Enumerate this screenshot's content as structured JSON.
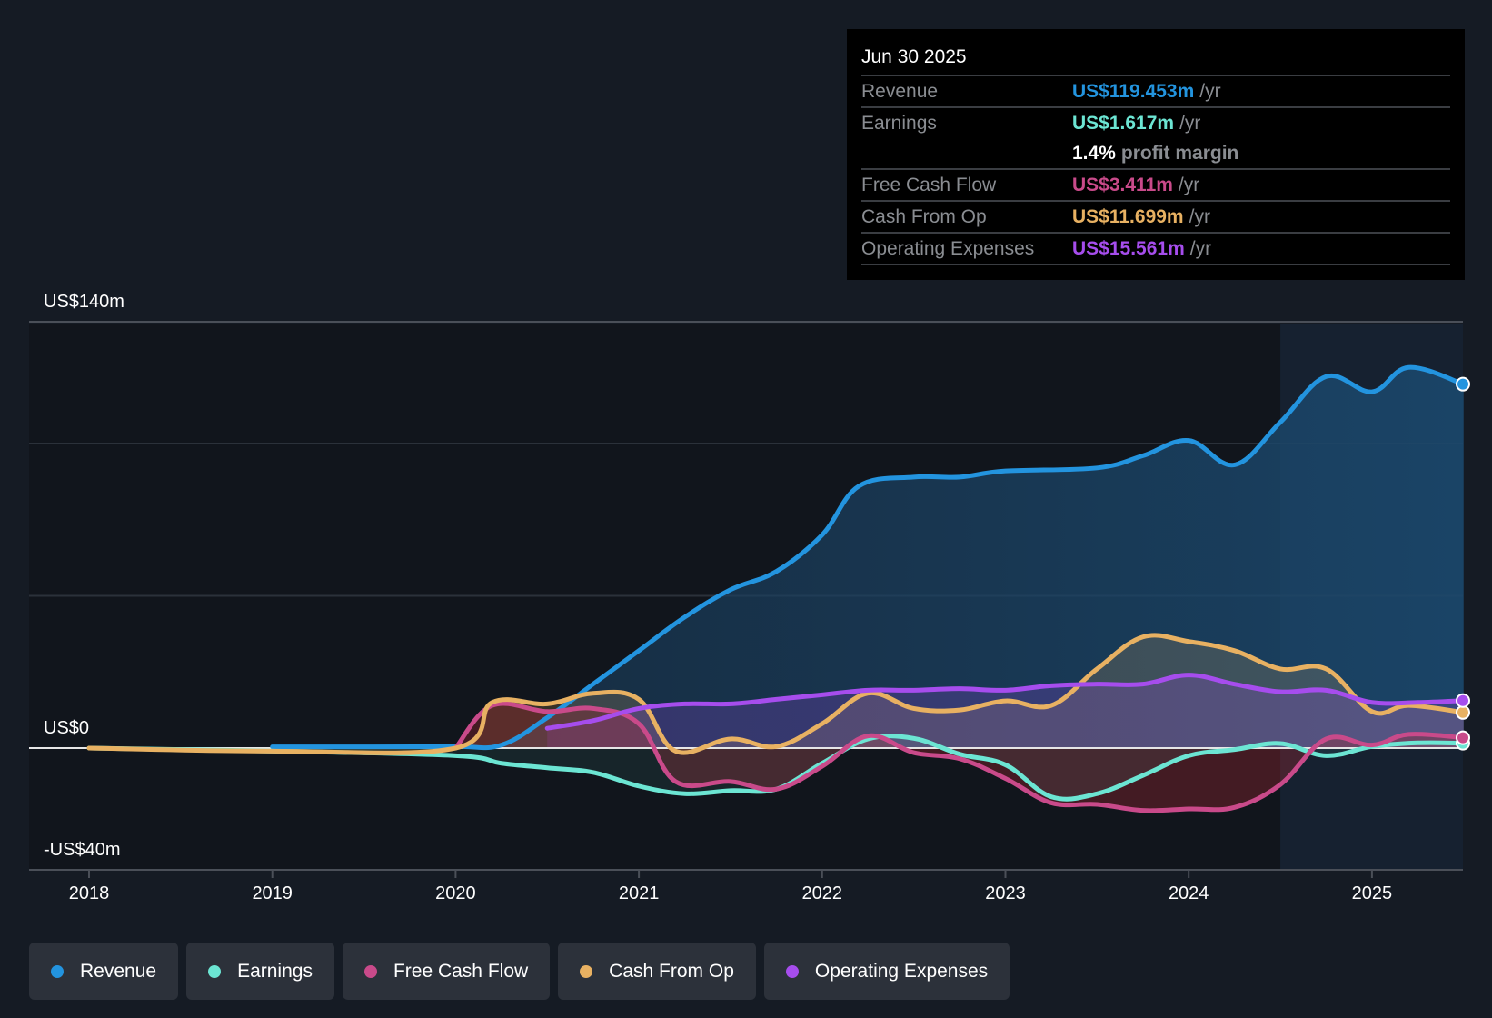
{
  "tooltip": {
    "date": "Jun 30 2025",
    "rows": [
      {
        "label": "Revenue",
        "value": "US$119.453m",
        "unit": "/yr",
        "color": "#2394df"
      },
      {
        "label": "Earnings",
        "value": "US$1.617m",
        "unit": "/yr",
        "color": "#6ce5d3"
      },
      {
        "label": "",
        "margin_value": "1.4%",
        "margin_text": "profit margin"
      },
      {
        "label": "Free Cash Flow",
        "value": "US$3.411m",
        "unit": "/yr",
        "color": "#c94a8a"
      },
      {
        "label": "Cash From Op",
        "value": "US$11.699m",
        "unit": "/yr",
        "color": "#e8b162"
      },
      {
        "label": "Operating Expenses",
        "value": "US$15.561m",
        "unit": "/yr",
        "color": "#a64ded"
      }
    ]
  },
  "legend": [
    {
      "label": "Revenue",
      "color": "#2394df"
    },
    {
      "label": "Earnings",
      "color": "#6ce5d3"
    },
    {
      "label": "Free Cash Flow",
      "color": "#c94a8a"
    },
    {
      "label": "Cash From Op",
      "color": "#e8b162"
    },
    {
      "label": "Operating Expenses",
      "color": "#a64ded"
    }
  ],
  "chart_data": {
    "type": "area",
    "title": "",
    "xlabel": "",
    "ylabel": "",
    "xlim": [
      2017.7,
      2025.5
    ],
    "ylim": [
      -40,
      140
    ],
    "y_tick_labels": [
      {
        "value": 140,
        "label": "US$140m"
      },
      {
        "value": 0,
        "label": "US$0"
      },
      {
        "value": -40,
        "label": "-US$40m"
      }
    ],
    "gridlines": [
      140,
      100,
      50,
      0
    ],
    "x_ticks": [
      2018,
      2019,
      2020,
      2021,
      2022,
      2023,
      2024,
      2025
    ],
    "x_tick_labels": [
      "2018",
      "2019",
      "2020",
      "2021",
      "2022",
      "2023",
      "2024",
      "2025"
    ],
    "highlight_start": 2024.5,
    "legend_position": "bottom-left",
    "series": [
      {
        "name": "Revenue",
        "color": "#2394df",
        "x": [
          2019.0,
          2019.5,
          2020.0,
          2020.25,
          2020.5,
          2020.75,
          2021.0,
          2021.25,
          2021.5,
          2021.75,
          2022.0,
          2022.2,
          2022.5,
          2022.75,
          2023.0,
          2023.5,
          2023.75,
          2024.0,
          2024.25,
          2024.5,
          2024.75,
          2025.0,
          2025.2,
          2025.5
        ],
        "values": [
          0.4,
          0.4,
          0.5,
          1,
          10,
          21,
          32,
          43,
          52,
          58,
          70,
          86,
          89,
          89,
          91,
          92,
          96,
          101,
          93,
          107,
          122,
          117,
          125,
          119.5
        ]
      },
      {
        "name": "Earnings",
        "color": "#6ce5d3",
        "x": [
          2018.0,
          2019.0,
          2020.0,
          2020.25,
          2020.5,
          2020.75,
          2021.0,
          2021.25,
          2021.5,
          2021.75,
          2022.0,
          2022.25,
          2022.5,
          2022.75,
          2023.0,
          2023.25,
          2023.5,
          2023.75,
          2024.0,
          2024.25,
          2024.5,
          2024.75,
          2025.0,
          2025.25,
          2025.5
        ],
        "values": [
          0,
          -1,
          -2.5,
          -5,
          -6.5,
          -8,
          -12.5,
          -15,
          -14,
          -13.5,
          -5,
          3,
          3.2,
          -2,
          -5.5,
          -16,
          -15,
          -9,
          -2.5,
          -0.5,
          1.5,
          -2.5,
          0.5,
          1.7,
          1.6
        ]
      },
      {
        "name": "Free Cash Flow",
        "color": "#c94a8a",
        "x": [
          2020.0,
          2020.2,
          2020.5,
          2020.75,
          2021.0,
          2021.2,
          2021.5,
          2021.75,
          2022.0,
          2022.25,
          2022.5,
          2022.75,
          2023.0,
          2023.25,
          2023.5,
          2023.75,
          2024.0,
          2024.25,
          2024.5,
          2024.75,
          2025.0,
          2025.2,
          2025.5
        ],
        "values": [
          0,
          14,
          12,
          13,
          8,
          -11,
          -11,
          -13.5,
          -6,
          4,
          -1.5,
          -3.5,
          -10,
          -18,
          -18.5,
          -20.5,
          -20,
          -19.5,
          -12,
          3,
          1,
          4.5,
          3.4
        ]
      },
      {
        "name": "Cash From Op",
        "color": "#e8b162",
        "x": [
          2018.0,
          2019.0,
          2020.0,
          2020.2,
          2020.5,
          2020.75,
          2021.0,
          2021.2,
          2021.5,
          2021.75,
          2022.0,
          2022.25,
          2022.5,
          2022.75,
          2023.0,
          2023.25,
          2023.5,
          2023.75,
          2024.0,
          2024.25,
          2024.5,
          2024.75,
          2025.0,
          2025.2,
          2025.5
        ],
        "values": [
          0,
          -1,
          0,
          15,
          14.5,
          18,
          16,
          -1,
          3,
          0.5,
          8,
          18,
          13,
          12.5,
          15.5,
          14,
          26,
          36.5,
          35,
          32,
          26,
          26,
          12,
          14,
          11.7
        ]
      },
      {
        "name": "Operating Expenses",
        "color": "#a64ded",
        "x": [
          2020.5,
          2020.75,
          2021.0,
          2021.25,
          2021.5,
          2021.75,
          2022.0,
          2022.25,
          2022.5,
          2022.75,
          2023.0,
          2023.25,
          2023.5,
          2023.75,
          2024.0,
          2024.25,
          2024.5,
          2024.75,
          2025.0,
          2025.25,
          2025.5
        ],
        "values": [
          6.5,
          9,
          13,
          14.5,
          14.5,
          16,
          17.5,
          19,
          19,
          19.5,
          19,
          20.5,
          21,
          21,
          24,
          21,
          18.5,
          19,
          15,
          15,
          15.6
        ]
      }
    ]
  }
}
